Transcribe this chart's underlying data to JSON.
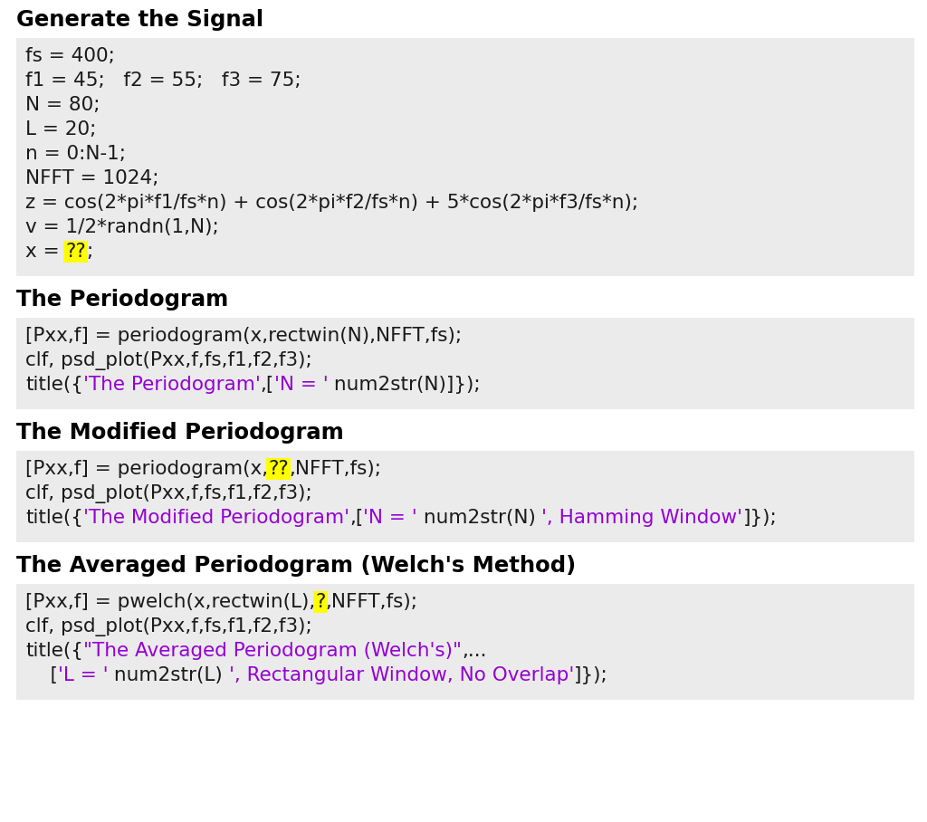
{
  "white_bg": "#ffffff",
  "code_bg": "#ebebeb",
  "sections": [
    {
      "title": "Generate the Signal",
      "code_lines": [
        [
          {
            "text": "fs = 400;",
            "color": "#1a1a1a",
            "bg": null
          }
        ],
        [
          {
            "text": "f1 = 45;   f2 = 55;   f3 = 75;",
            "color": "#1a1a1a",
            "bg": null
          }
        ],
        [
          {
            "text": "N = 80;",
            "color": "#1a1a1a",
            "bg": null
          }
        ],
        [
          {
            "text": "L = 20;",
            "color": "#1a1a1a",
            "bg": null
          }
        ],
        [
          {
            "text": "n = 0:N-1;",
            "color": "#1a1a1a",
            "bg": null
          }
        ],
        [
          {
            "text": "NFFT = 1024;",
            "color": "#1a1a1a",
            "bg": null
          }
        ],
        [
          {
            "text": "z = cos(2*pi*f1/fs*n) + cos(2*pi*f2/fs*n) + 5*cos(2*pi*f3/fs*n);",
            "color": "#1a1a1a",
            "bg": null
          }
        ],
        [
          {
            "text": "v = 1/2*randn(1,N);",
            "color": "#1a1a1a",
            "bg": null
          }
        ],
        [
          {
            "text": "x = ",
            "color": "#1a1a1a",
            "bg": null
          },
          {
            "text": "??",
            "color": "#1a1a1a",
            "bg": "#ffff00"
          },
          {
            "text": ";",
            "color": "#1a1a1a",
            "bg": null
          }
        ]
      ]
    },
    {
      "title": "The Periodogram",
      "code_lines": [
        [
          {
            "text": "[Pxx,f] = periodogram(x,rectwin(N),NFFT,fs);",
            "color": "#1a1a1a",
            "bg": null
          }
        ],
        [
          {
            "text": "clf, psd_plot(Pxx,f,fs,f1,f2,f3);",
            "color": "#1a1a1a",
            "bg": null
          }
        ],
        [
          {
            "text": "title({",
            "color": "#1a1a1a",
            "bg": null
          },
          {
            "text": "'The Periodogram'",
            "color": "#9400d3",
            "bg": null
          },
          {
            "text": ",[",
            "color": "#1a1a1a",
            "bg": null
          },
          {
            "text": "'N = '",
            "color": "#9400d3",
            "bg": null
          },
          {
            "text": " num2str(N)]});",
            "color": "#1a1a1a",
            "bg": null
          }
        ]
      ]
    },
    {
      "title": "The Modified Periodogram",
      "code_lines": [
        [
          {
            "text": "[Pxx,f] = periodogram(x,",
            "color": "#1a1a1a",
            "bg": null
          },
          {
            "text": "??",
            "color": "#1a1a1a",
            "bg": "#ffff00"
          },
          {
            "text": ",NFFT,fs);",
            "color": "#1a1a1a",
            "bg": null
          }
        ],
        [
          {
            "text": "clf, psd_plot(Pxx,f,fs,f1,f2,f3);",
            "color": "#1a1a1a",
            "bg": null
          }
        ],
        [
          {
            "text": "title({",
            "color": "#1a1a1a",
            "bg": null
          },
          {
            "text": "'The Modified Periodogram'",
            "color": "#9400d3",
            "bg": null
          },
          {
            "text": ",[",
            "color": "#1a1a1a",
            "bg": null
          },
          {
            "text": "'N = '",
            "color": "#9400d3",
            "bg": null
          },
          {
            "text": " num2str(N) ",
            "color": "#1a1a1a",
            "bg": null
          },
          {
            "text": "', Hamming Window'",
            "color": "#9400d3",
            "bg": null
          },
          {
            "text": "]});",
            "color": "#1a1a1a",
            "bg": null
          }
        ]
      ]
    },
    {
      "title": "The Averaged Periodogram (Welch's Method)",
      "code_lines": [
        [
          {
            "text": "[Pxx,f] = pwelch(x,rectwin(L),",
            "color": "#1a1a1a",
            "bg": null
          },
          {
            "text": "?",
            "color": "#1a1a1a",
            "bg": "#ffff00"
          },
          {
            "text": ",NFFT,fs);",
            "color": "#1a1a1a",
            "bg": null
          }
        ],
        [
          {
            "text": "clf, psd_plot(Pxx,f,fs,f1,f2,f3);",
            "color": "#1a1a1a",
            "bg": null
          }
        ],
        [
          {
            "text": "title({",
            "color": "#1a1a1a",
            "bg": null
          },
          {
            "text": "\"The Averaged Periodogram (Welch's)\"",
            "color": "#9400d3",
            "bg": null
          },
          {
            "text": ",...",
            "color": "#1a1a1a",
            "bg": null
          }
        ],
        [
          {
            "text": "    [",
            "color": "#1a1a1a",
            "bg": null
          },
          {
            "text": "'L = '",
            "color": "#9400d3",
            "bg": null
          },
          {
            "text": " num2str(L) ",
            "color": "#1a1a1a",
            "bg": null
          },
          {
            "text": "', Rectangular Window, No Overlap'",
            "color": "#9400d3",
            "bg": null
          },
          {
            "text": "]});",
            "color": "#1a1a1a",
            "bg": null
          }
        ]
      ]
    }
  ]
}
